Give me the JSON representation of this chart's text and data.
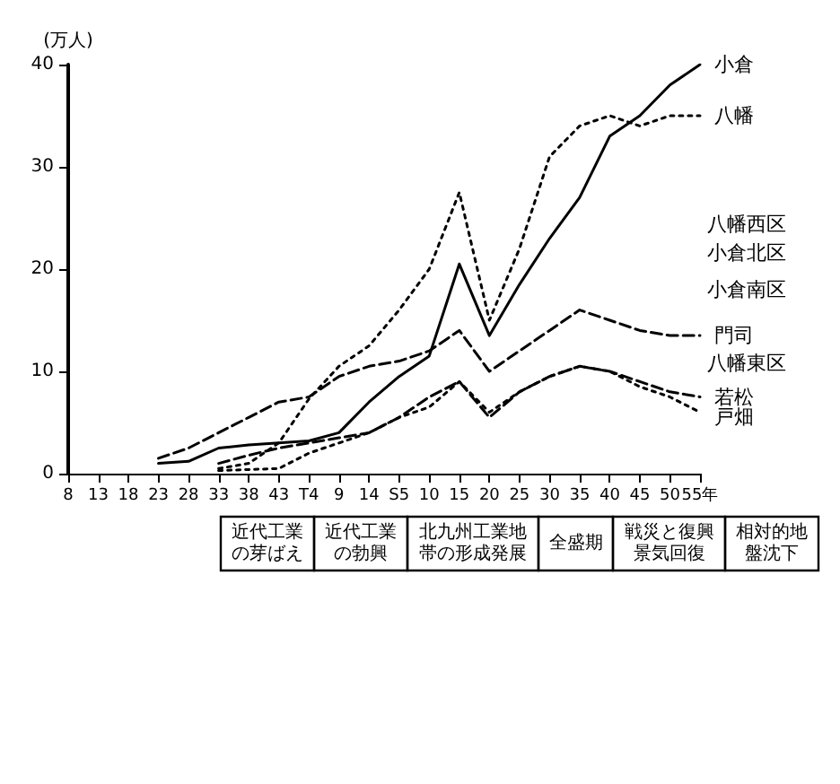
{
  "chart_data": {
    "type": "line",
    "ylabel": "(万人)",
    "categories": [
      "8",
      "13",
      "18",
      "23",
      "28",
      "33",
      "38",
      "43",
      "T4",
      "9",
      "14",
      "S5",
      "10",
      "15",
      "20",
      "25",
      "30",
      "35",
      "40",
      "45",
      "50",
      "55年"
    ],
    "ylim": [
      0,
      40
    ],
    "yticks": [
      0,
      10,
      20,
      30,
      40
    ],
    "grid": false,
    "legend": false,
    "marker": "none",
    "series": [
      {
        "name": "小倉",
        "color": "#000000",
        "line_style": "solid",
        "values": [
          null,
          null,
          null,
          1.0,
          1.2,
          2.5,
          2.8,
          3.0,
          3.2,
          4.0,
          7.0,
          9.5,
          11.5,
          20.5,
          13.5,
          18.5,
          23,
          27,
          33,
          35,
          38,
          40
        ]
      },
      {
        "name": "八幡",
        "color": "#000000",
        "line_style": "dotted",
        "values": [
          null,
          null,
          null,
          null,
          null,
          0.5,
          1.0,
          3,
          7.3,
          10.5,
          12.5,
          16,
          20,
          27.5,
          15,
          22,
          31,
          34,
          35,
          34,
          35,
          35
        ]
      },
      {
        "name": "門司",
        "color": "#000000",
        "line_style": "dashed",
        "values": [
          null,
          null,
          null,
          1.5,
          2.5,
          4,
          5.5,
          7,
          7.5,
          9.5,
          10.5,
          11,
          12,
          14,
          10,
          12,
          14,
          16,
          15,
          14,
          13.5,
          13.5
        ]
      },
      {
        "name": "若松",
        "color": "#000000",
        "line_style": "dashed",
        "values": [
          null,
          null,
          null,
          null,
          null,
          1,
          1.8,
          2.5,
          3,
          3.5,
          4,
          5.5,
          7.5,
          9,
          5.5,
          8,
          9.5,
          10.5,
          10,
          9,
          8,
          7.5
        ]
      },
      {
        "name": "戸畑",
        "color": "#000000",
        "line_style": "dotted",
        "values": [
          null,
          null,
          null,
          null,
          null,
          0.3,
          0.4,
          0.5,
          2,
          3,
          4,
          5.5,
          6.5,
          9,
          6,
          8,
          9.5,
          10.5,
          10,
          8.5,
          7.5,
          6
        ]
      }
    ],
    "annotations": [
      "八幡西区",
      "小倉北区",
      "小倉南区",
      "八幡東区",
      "近代工業の芽ばえ",
      "近代工業の勃興",
      "北九州工業地帯の形成発展",
      "全盛期",
      "戦災と復興景気回復",
      "相対的地盤沈下"
    ]
  }
}
